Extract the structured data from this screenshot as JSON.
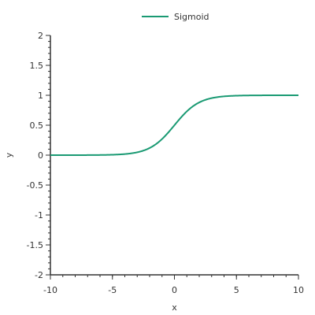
{
  "chart_data": {
    "type": "line",
    "xlabel": "x",
    "ylabel": "y",
    "xlim": [
      -10,
      10
    ],
    "ylim": [
      -2,
      2
    ],
    "x_ticks": [
      -10,
      -5,
      0,
      5,
      10
    ],
    "y_ticks": [
      -2,
      -1.5,
      -1,
      -0.5,
      0,
      0.5,
      1,
      1.5,
      2
    ],
    "x_tick_labels": [
      "-10",
      "-5",
      "0",
      "5",
      "10"
    ],
    "y_tick_labels": [
      "-2",
      "-1.5",
      "-1",
      "-0.5",
      "0",
      "0.5",
      "1",
      "1.5",
      "2"
    ],
    "grid": false,
    "legend": "top-center",
    "series": [
      {
        "name": "Sigmoid",
        "color": "#1a9a73",
        "x": [
          -10,
          -9,
          -8,
          -7,
          -6,
          -5,
          -4,
          -3,
          -2.5,
          -2,
          -1.5,
          -1,
          -0.5,
          0,
          0.5,
          1,
          1.5,
          2,
          2.5,
          3,
          4,
          5,
          6,
          7,
          8,
          9,
          10
        ],
        "y": [
          0.0,
          0.0001,
          0.0003,
          0.0009,
          0.0025,
          0.0067,
          0.018,
          0.0474,
          0.0759,
          0.1192,
          0.1824,
          0.2689,
          0.3775,
          0.5,
          0.6225,
          0.7311,
          0.8176,
          0.8808,
          0.9241,
          0.9526,
          0.982,
          0.9933,
          0.9975,
          0.9991,
          0.9997,
          0.9999,
          1.0
        ]
      }
    ]
  }
}
